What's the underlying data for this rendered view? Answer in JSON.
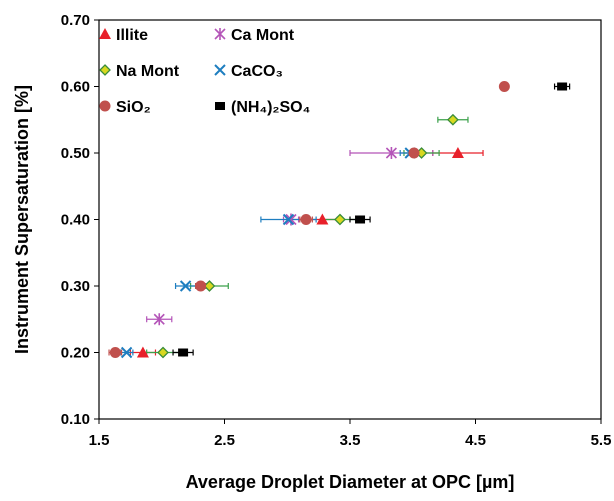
{
  "chart_data": {
    "type": "scatter",
    "xlabel": "Average Droplet Diameter at OPC [µm]",
    "ylabel": "Instrument Supersaturation [%]",
    "xlim": [
      1.5,
      5.5
    ],
    "ylim": [
      0.1,
      0.7
    ],
    "x_ticks": [
      "1.5",
      "2.5",
      "3.5",
      "4.5",
      "5.5"
    ],
    "y_ticks": [
      "0.10",
      "0.20",
      "0.30",
      "0.40",
      "0.50",
      "0.60",
      "0.70"
    ],
    "grid": false,
    "legend_position": "top-left",
    "series": [
      {
        "name": "Illite",
        "marker": "triangle",
        "color": "#e8202a",
        "points": [
          {
            "x": 1.85,
            "y": 0.2,
            "err": 0.1
          },
          {
            "x": 3.28,
            "y": 0.4,
            "err": 0.12
          },
          {
            "x": 4.36,
            "y": 0.5,
            "err": 0.2
          }
        ]
      },
      {
        "name": "Ca Mont",
        "marker": "asterisk",
        "color": "#b455b8",
        "points": [
          {
            "x": 1.98,
            "y": 0.25,
            "err": 0.1
          },
          {
            "x": 3.03,
            "y": 0.4,
            "err": 0.06
          },
          {
            "x": 3.83,
            "y": 0.5,
            "err": 0.33
          }
        ]
      },
      {
        "name": "Na Mont",
        "marker": "diamond",
        "color": "#d8d820",
        "points": [
          {
            "x": 2.01,
            "y": 0.2,
            "err": 0.13
          },
          {
            "x": 2.38,
            "y": 0.3,
            "err": 0.15
          },
          {
            "x": 3.42,
            "y": 0.4,
            "err": 0.14
          },
          {
            "x": 4.07,
            "y": 0.5,
            "err": 0.14
          },
          {
            "x": 4.32,
            "y": 0.55,
            "err": 0.12
          }
        ]
      },
      {
        "name": "CaCO₃",
        "marker": "x",
        "color": "#1e7ec0",
        "points": [
          {
            "x": 1.72,
            "y": 0.2,
            "err": 0.05
          },
          {
            "x": 2.19,
            "y": 0.3,
            "err": 0.08
          },
          {
            "x": 3.01,
            "y": 0.4,
            "err": 0.22
          },
          {
            "x": 3.98,
            "y": 0.5,
            "err": 0.08
          }
        ]
      },
      {
        "name": "SiO₂",
        "marker": "circle",
        "color": "#c0504d",
        "points": [
          {
            "x": 1.63,
            "y": 0.2,
            "err": 0.05
          },
          {
            "x": 2.31,
            "y": 0.3,
            "err": 0.04
          },
          {
            "x": 3.15,
            "y": 0.4,
            "err": 0.05
          },
          {
            "x": 4.01,
            "y": 0.5,
            "err": 0.04
          },
          {
            "x": 4.73,
            "y": 0.6,
            "err": 0.0
          }
        ]
      },
      {
        "name": "(NH₄)₂SO₄",
        "marker": "square",
        "color": "#000000",
        "points": [
          {
            "x": 2.17,
            "y": 0.2,
            "err": 0.08
          },
          {
            "x": 3.58,
            "y": 0.4,
            "err": 0.08
          },
          {
            "x": 5.19,
            "y": 0.6,
            "err": 0.06
          }
        ]
      }
    ]
  }
}
